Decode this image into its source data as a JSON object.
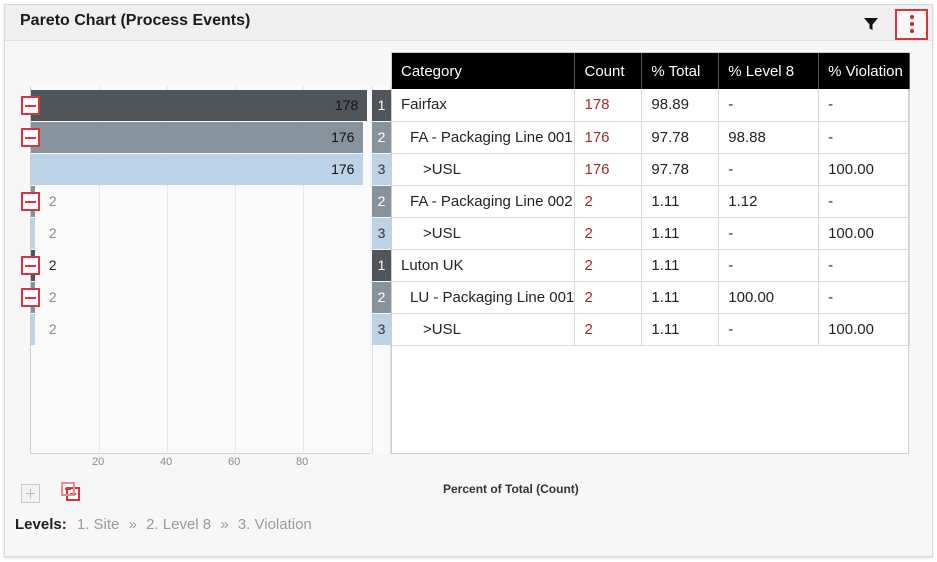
{
  "header": {
    "title": "Pareto Chart (Process Events)"
  },
  "table": {
    "columns": [
      "Category",
      "Count",
      "% Total",
      "% Level 8",
      "% Violation"
    ],
    "rows": [
      {
        "level": "1",
        "category": "Fairfax",
        "count": "178",
        "total": "98.89",
        "level8": "-",
        "violation": "-"
      },
      {
        "level": "2",
        "category": "FA - Packaging Line 001",
        "count": "176",
        "total": "97.78",
        "level8": "98.88",
        "violation": "-"
      },
      {
        "level": "3",
        "category": ">USL",
        "count": "176",
        "total": "97.78",
        "level8": "-",
        "violation": "100.00"
      },
      {
        "level": "2",
        "category": "FA - Packaging Line 002",
        "count": "2",
        "total": "1.11",
        "level8": "1.12",
        "violation": "-"
      },
      {
        "level": "3",
        "category": ">USL",
        "count": "2",
        "total": "1.11",
        "level8": "-",
        "violation": "100.00"
      },
      {
        "level": "1",
        "category": "Luton UK",
        "count": "2",
        "total": "1.11",
        "level8": "-",
        "violation": "-"
      },
      {
        "level": "2",
        "category": "LU - Packaging Line 001",
        "count": "2",
        "total": "1.11",
        "level8": "100.00",
        "violation": "-"
      },
      {
        "level": "3",
        "category": ">USL",
        "count": "2",
        "total": "1.11",
        "level8": "-",
        "violation": "100.00"
      }
    ]
  },
  "colors": {
    "level1": "#4f555b",
    "level2": "#87939c",
    "level3": "#bcd2e6",
    "accent": "#d9343b"
  },
  "chart_data": {
    "type": "bar",
    "orientation": "horizontal",
    "categories": [
      "Fairfax",
      "FA - Packaging Line 001",
      ">USL",
      "FA - Packaging Line 002",
      ">USL",
      "Luton UK",
      "LU - Packaging Line 001",
      ">USL"
    ],
    "values": [
      98.89,
      97.78,
      97.78,
      1.11,
      1.11,
      1.11,
      1.11,
      1.11
    ],
    "data_labels": [
      "178",
      "176",
      "176",
      "2",
      "2",
      "2",
      "2",
      "2"
    ],
    "levels": [
      1,
      2,
      3,
      2,
      3,
      1,
      2,
      3
    ],
    "xlabel": "Percent of Total (Count)",
    "xticks": [
      "20",
      "40",
      "60",
      "80"
    ],
    "xlim": [
      0,
      100
    ]
  },
  "levels_bar": {
    "label": "Levels:",
    "items": [
      "1. Site",
      "2. Level 8",
      "3. Violation"
    ],
    "separator": "»"
  }
}
